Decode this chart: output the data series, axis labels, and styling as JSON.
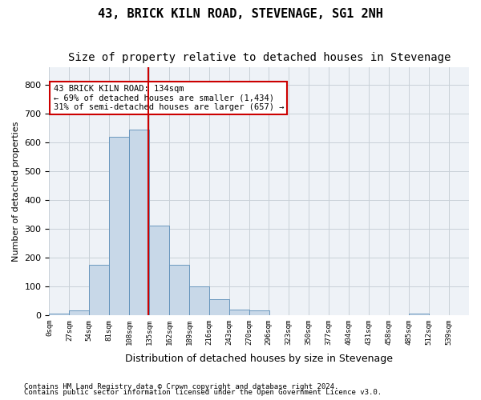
{
  "title": "43, BRICK KILN ROAD, STEVENAGE, SG1 2NH",
  "subtitle": "Size of property relative to detached houses in Stevenage",
  "xlabel": "Distribution of detached houses by size in Stevenage",
  "ylabel": "Number of detached properties",
  "bar_values": [
    5,
    15,
    175,
    620,
    645,
    310,
    175,
    100,
    55,
    20,
    15,
    0,
    0,
    0,
    0,
    0,
    0,
    0,
    5,
    0,
    0
  ],
  "bin_edges": [
    0,
    27,
    54,
    81,
    108,
    135,
    162,
    189,
    216,
    243,
    270,
    296,
    323,
    350,
    377,
    404,
    431,
    458,
    485,
    512,
    539
  ],
  "x_tick_labels": [
    "0sqm",
    "27sqm",
    "54sqm",
    "81sqm",
    "108sqm",
    "135sqm",
    "162sqm",
    "189sqm",
    "216sqm",
    "243sqm",
    "270sqm",
    "296sqm",
    "323sqm",
    "350sqm",
    "377sqm",
    "404sqm",
    "431sqm",
    "458sqm",
    "485sqm",
    "512sqm",
    "539sqm"
  ],
  "ylim": [
    0,
    860
  ],
  "bar_color": "#c8d8e8",
  "bar_edge_color": "#5b8db8",
  "grid_color": "#c8d0d8",
  "bg_color": "#eef2f7",
  "red_line_x": 134,
  "annotation_text": "43 BRICK KILN ROAD: 134sqm\n← 69% of detached houses are smaller (1,434)\n31% of semi-detached houses are larger (657) →",
  "annotation_box_color": "#ffffff",
  "annotation_box_edge": "#cc0000",
  "footnote1": "Contains HM Land Registry data © Crown copyright and database right 2024.",
  "footnote2": "Contains public sector information licensed under the Open Government Licence v3.0.",
  "title_fontsize": 11,
  "subtitle_fontsize": 10
}
